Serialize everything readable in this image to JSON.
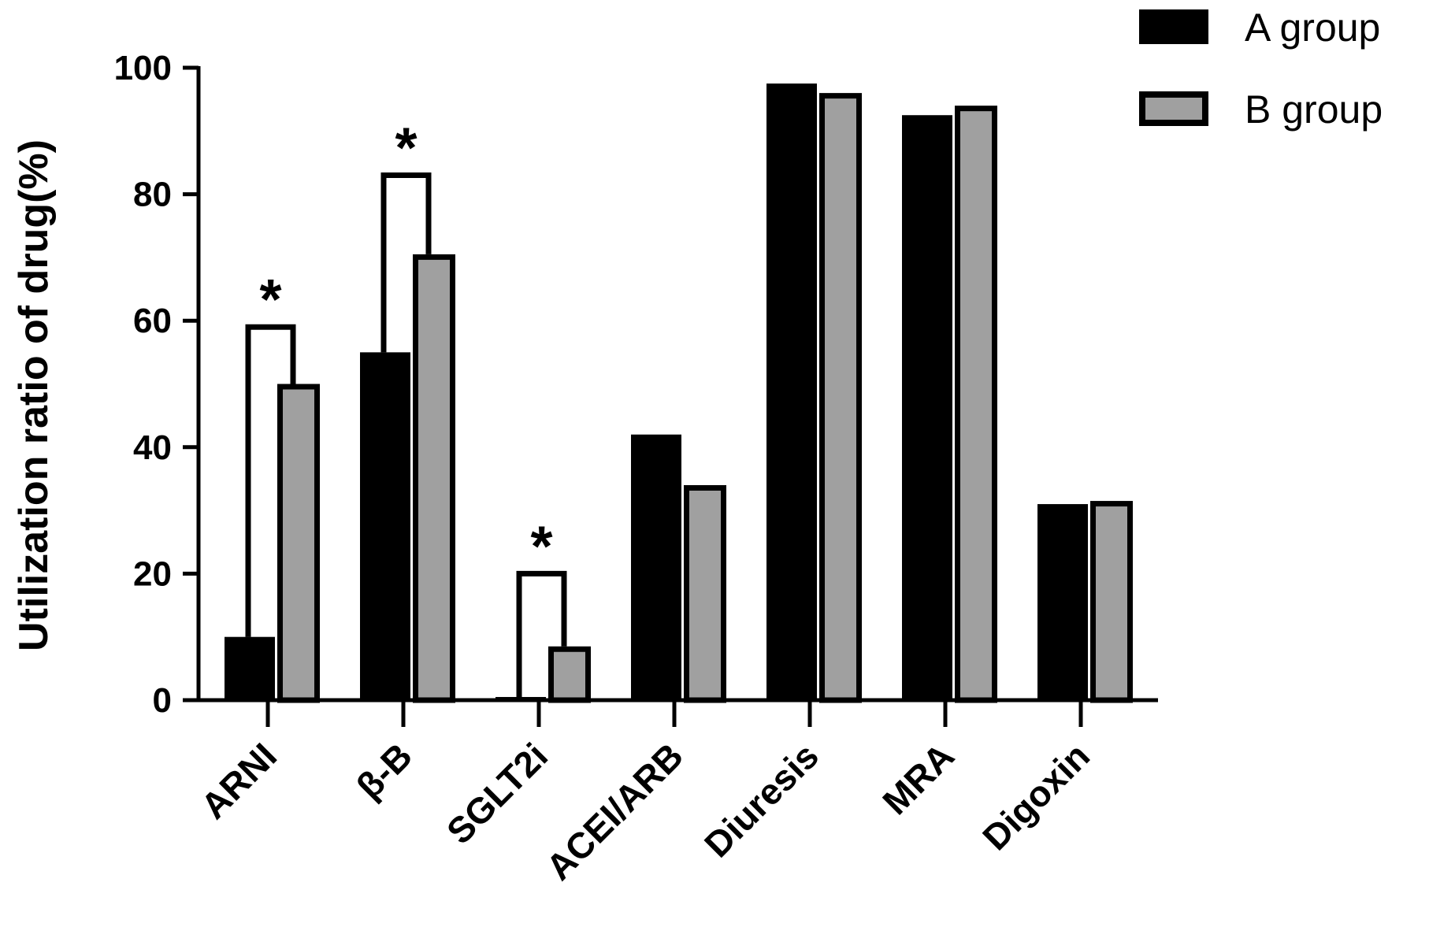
{
  "chart_data": {
    "type": "bar",
    "ylabel": "Utilization ratio of drug(%)",
    "ylim": [
      0,
      100
    ],
    "yticks": [
      "0",
      "20",
      "40",
      "60",
      "80",
      "100"
    ],
    "categories": [
      "ARNI",
      "β-B",
      "SGLT2i",
      "ACEI/ARB",
      "Diuresis",
      "MRA",
      "Digoxin"
    ],
    "series": [
      {
        "name": "A group",
        "color": "#000000",
        "values": [
          10,
          55,
          0.5,
          42,
          97.5,
          92.5,
          31
        ]
      },
      {
        "name": "B group",
        "color": "#a0a0a0",
        "values": [
          50,
          70.5,
          8.5,
          34,
          96,
          94,
          31.5
        ]
      }
    ],
    "significance": [
      {
        "category": "ARNI",
        "bracket_value": 59,
        "label": "*"
      },
      {
        "category": "β-B",
        "bracket_value": 83,
        "label": "*"
      },
      {
        "category": "SGLT2i",
        "bracket_value": 20,
        "label": "*"
      }
    ],
    "legend": {
      "position": "top-right"
    },
    "grid": false
  }
}
